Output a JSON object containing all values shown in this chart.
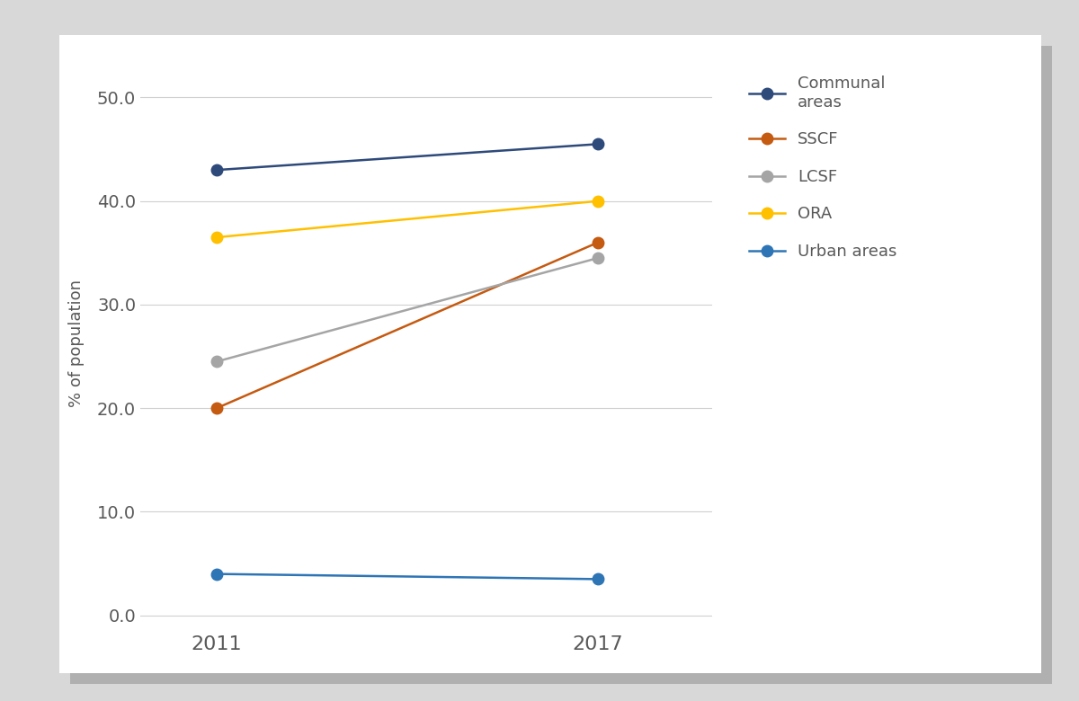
{
  "years": [
    2011,
    2017
  ],
  "series": [
    {
      "label": "Communal\nareas",
      "values": [
        43.0,
        45.5
      ],
      "color": "#2e4a7a",
      "marker": "o",
      "linewidth": 1.8,
      "markersize": 9
    },
    {
      "label": "SSCF",
      "values": [
        20.0,
        36.0
      ],
      "color": "#c55a11",
      "marker": "o",
      "linewidth": 1.8,
      "markersize": 9
    },
    {
      "label": "LCSF",
      "values": [
        24.5,
        34.5
      ],
      "color": "#a5a5a5",
      "marker": "o",
      "linewidth": 1.8,
      "markersize": 9
    },
    {
      "label": "ORA",
      "values": [
        36.5,
        40.0
      ],
      "color": "#ffc000",
      "marker": "o",
      "linewidth": 1.8,
      "markersize": 9
    },
    {
      "label": "Urban areas",
      "values": [
        4.0,
        3.5
      ],
      "color": "#2e75b6",
      "marker": "o",
      "linewidth": 1.8,
      "markersize": 9
    }
  ],
  "ylabel": "% of population",
  "yticks": [
    0.0,
    10.0,
    20.0,
    30.0,
    40.0,
    50.0
  ],
  "ylim": [
    -1.5,
    54
  ],
  "xticks": [
    2011,
    2017
  ],
  "xlim": [
    2009.8,
    2018.8
  ],
  "grid_color": "#d0d0d0",
  "background_color": "#ffffff",
  "fig_background": "#d8d8d8",
  "tick_fontsize": 14,
  "axis_fontsize": 13,
  "legend_fontsize": 13
}
